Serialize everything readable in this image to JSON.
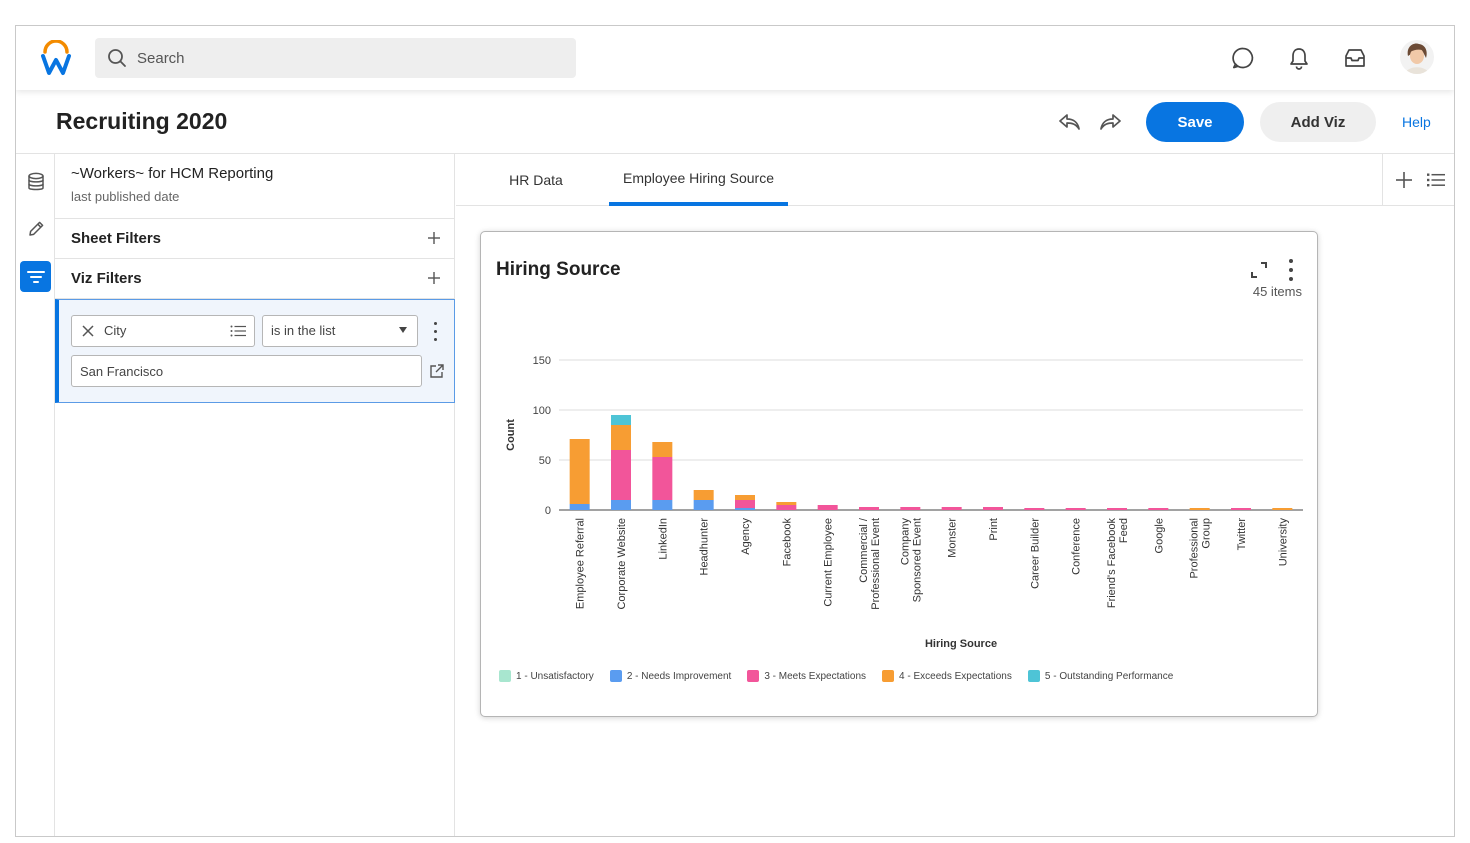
{
  "app": {
    "search_placeholder": "Search",
    "icons": [
      "workday-logo-icon",
      "search-icon",
      "chat-icon",
      "bell-icon",
      "inbox-icon",
      "user-avatar"
    ]
  },
  "header": {
    "title": "Recruiting 2020",
    "save_label": "Save",
    "add_viz_label": "Add Viz",
    "help_label": "Help",
    "accent_color": "#0875e1"
  },
  "panel": {
    "datasource_title": "~Workers~ for HCM Reporting",
    "datasource_subtitle": "last published date",
    "sheet_filters_label": "Sheet Filters",
    "viz_filters_label": "Viz Filters",
    "filter": {
      "field_label": "City",
      "operator_label": "is in the list",
      "value": "San Francisco"
    }
  },
  "tabs": [
    {
      "label": "HR Data",
      "active": false
    },
    {
      "label": "Employee Hiring Source",
      "active": true
    }
  ],
  "viz": {
    "title": "Hiring Source",
    "count_label": "45 items"
  },
  "chart_data": {
    "type": "bar",
    "stacked": true,
    "xlabel": "Hiring Source",
    "ylabel": "Count",
    "ylim": [
      0,
      150
    ],
    "yticks": [
      0,
      50,
      100,
      150
    ],
    "grid": true,
    "legend_position": "bottom",
    "categories": [
      [
        "Employee Referral"
      ],
      [
        "Corporate Website"
      ],
      [
        "LinkedIn"
      ],
      [
        "Headhunter"
      ],
      [
        "Agency"
      ],
      [
        "Facebook"
      ],
      [
        "Current Employee"
      ],
      [
        "Commercial /",
        "Professional Event"
      ],
      [
        "Company",
        "Sponsored Event"
      ],
      [
        "Monster"
      ],
      [
        "Print"
      ],
      [
        "Career Builder"
      ],
      [
        "Conference"
      ],
      [
        "Friend's Facebook",
        "Feed"
      ],
      [
        "Google"
      ],
      [
        "Professional",
        "Group"
      ],
      [
        "Twitter"
      ],
      [
        "University"
      ]
    ],
    "series": [
      {
        "name": "1 - Unsatisfactory",
        "color": "#a8e6cf",
        "values": [
          0,
          0,
          0,
          0,
          0,
          0,
          0,
          0,
          0,
          0,
          0,
          0,
          0,
          0,
          0,
          0,
          0,
          0
        ]
      },
      {
        "name": "2 - Needs Improvement",
        "color": "#5a9cf0",
        "values": [
          6,
          10,
          10,
          10,
          2,
          0,
          0,
          0,
          0,
          0,
          0,
          0,
          0,
          0,
          0,
          0,
          0,
          0
        ]
      },
      {
        "name": "3 - Meets Expectations",
        "color": "#f2559a",
        "values": [
          0,
          50,
          43,
          0,
          8,
          5,
          5,
          3,
          3,
          3,
          3,
          2,
          2,
          2,
          2,
          0,
          2,
          0
        ]
      },
      {
        "name": "4 - Exceeds Expectations",
        "color": "#f79d33",
        "values": [
          65,
          25,
          15,
          10,
          5,
          3,
          0,
          0,
          0,
          0,
          0,
          0,
          0,
          0,
          0,
          2,
          0,
          2
        ]
      },
      {
        "name": "5 - Outstanding Performance",
        "color": "#4ec4d6",
        "values": [
          0,
          10,
          0,
          0,
          0,
          0,
          0,
          0,
          0,
          0,
          0,
          0,
          0,
          0,
          0,
          0,
          0,
          0
        ]
      }
    ]
  }
}
